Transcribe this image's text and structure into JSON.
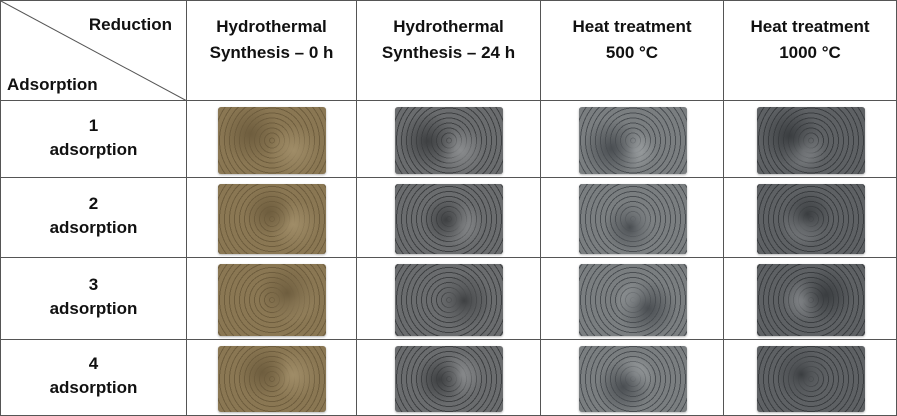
{
  "table": {
    "corner": {
      "top": "Reduction",
      "bottom": "Adsorption"
    },
    "columns": [
      [
        "Hydrothermal",
        "Synthesis – 0 h"
      ],
      [
        "Hydrothermal",
        "Synthesis – 24 h"
      ],
      [
        "Heat treatment",
        "500 °C"
      ],
      [
        "Heat treatment",
        "1000 °C"
      ]
    ],
    "rows": [
      {
        "number": "1",
        "label": "adsorption"
      },
      {
        "number": "2",
        "label": "adsorption"
      },
      {
        "number": "3",
        "label": "adsorption"
      },
      {
        "number": "4",
        "label": "adsorption"
      }
    ]
  }
}
